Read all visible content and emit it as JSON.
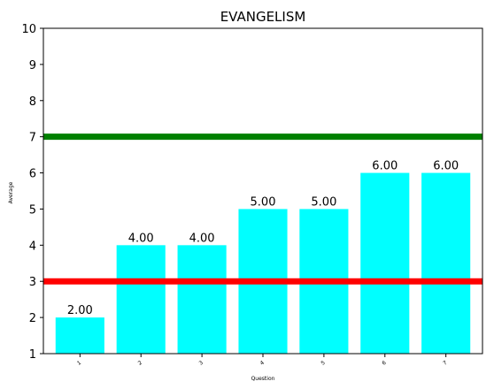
{
  "chart_data": {
    "type": "bar",
    "title": "EVANGELISM",
    "xlabel": "Question",
    "ylabel": "Average",
    "categories": [
      "1",
      "2",
      "3",
      "4",
      "5",
      "6",
      "7"
    ],
    "values": [
      2,
      4,
      4,
      5,
      5,
      6,
      6
    ],
    "data_labels": [
      "2.00",
      "4.00",
      "4.00",
      "5.00",
      "5.00",
      "6.00",
      "6.00"
    ],
    "ylim": [
      1,
      10
    ],
    "yticks": [
      "1",
      "2",
      "3",
      "4",
      "5",
      "6",
      "7",
      "8",
      "9",
      "10"
    ],
    "reference_lines": [
      {
        "value": 7,
        "color": "#008000"
      },
      {
        "value": 3,
        "color": "#ff0000"
      }
    ],
    "bar_color": "#00ffff",
    "grid": false
  }
}
